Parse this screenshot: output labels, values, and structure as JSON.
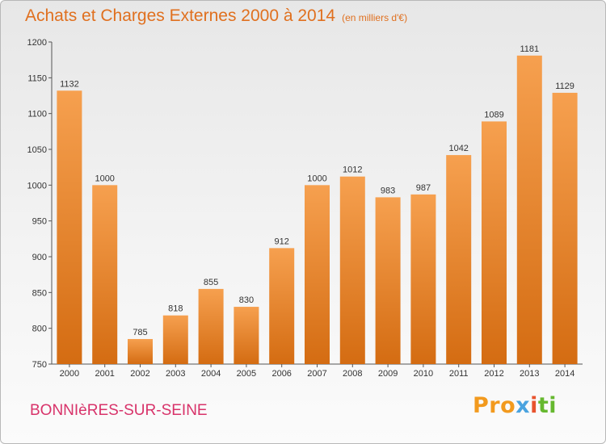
{
  "header": {
    "title": "Achats et Charges Externes 2000 à 2014",
    "subtitle": "(en milliers d'€)"
  },
  "footer": {
    "commune": "BONNIèRES-SUR-SEINE",
    "logo": [
      "Pro",
      "x",
      "i",
      "ti"
    ]
  },
  "colors": {
    "bar_light": "#f6a04f",
    "bar_dark": "#d46c12",
    "title": "#e0701f",
    "commune": "#d8336a"
  },
  "chart_data": {
    "type": "bar",
    "title": "Achats et Charges Externes 2000 à 2014",
    "subtitle": "(en milliers d'€)",
    "categories": [
      "2000",
      "2001",
      "2002",
      "2003",
      "2004",
      "2005",
      "2006",
      "2007",
      "2008",
      "2009",
      "2010",
      "2011",
      "2012",
      "2013",
      "2014"
    ],
    "values": [
      1132,
      1000,
      785,
      818,
      855,
      830,
      912,
      1000,
      1012,
      983,
      987,
      1042,
      1089,
      1181,
      1129
    ],
    "ylim": [
      750,
      1200
    ],
    "yticks": [
      750,
      800,
      850,
      900,
      950,
      1000,
      1050,
      1100,
      1150,
      1200
    ],
    "xlabel": "",
    "ylabel": "",
    "grid": false,
    "legend": "none"
  }
}
